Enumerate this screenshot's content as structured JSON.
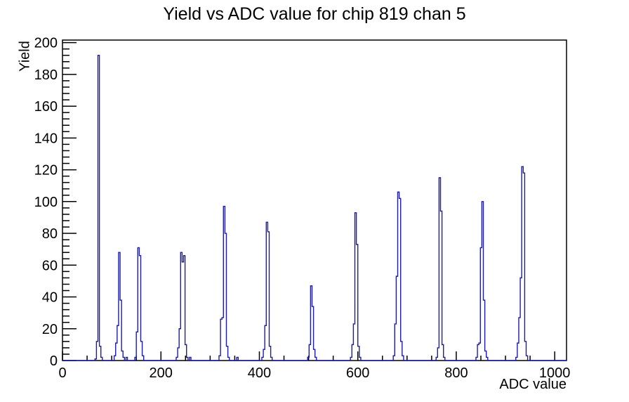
{
  "chart_data": {
    "type": "line",
    "style": "root-histogram-outline",
    "title": "Yield vs ADC value for chip 819 chan 5",
    "xlabel": "ADC value",
    "ylabel": "Yield",
    "xlim": [
      0,
      1024
    ],
    "ylim": [
      0,
      201.6
    ],
    "x_major_ticks": [
      0,
      200,
      400,
      600,
      800,
      1000
    ],
    "x_minor_step": 50,
    "y_major_ticks": [
      0,
      20,
      40,
      60,
      80,
      100,
      120,
      140,
      160,
      180,
      200
    ],
    "y_minor_step": 4,
    "grid": false,
    "legend": false,
    "line_color": "#1C1CA8",
    "frame_color": "#000000",
    "bin_width": 3,
    "peak_positions": [
      74,
      113,
      154,
      241,
      329,
      417,
      505,
      594,
      681,
      767,
      852,
      934
    ],
    "peak_heights": [
      192,
      68,
      71,
      68,
      97,
      87,
      47,
      93,
      106,
      115,
      100,
      122
    ],
    "bins": [
      [
        66,
        1
      ],
      [
        69,
        12
      ],
      [
        72,
        192
      ],
      [
        75,
        9
      ],
      [
        78,
        2
      ],
      [
        105,
        3
      ],
      [
        108,
        11
      ],
      [
        111,
        22
      ],
      [
        114,
        68
      ],
      [
        117,
        38
      ],
      [
        120,
        6
      ],
      [
        123,
        2
      ],
      [
        129,
        2
      ],
      [
        147,
        2
      ],
      [
        150,
        18
      ],
      [
        153,
        71
      ],
      [
        156,
        66
      ],
      [
        159,
        12
      ],
      [
        162,
        3
      ],
      [
        231,
        2
      ],
      [
        234,
        8
      ],
      [
        237,
        20
      ],
      [
        240,
        68
      ],
      [
        243,
        62
      ],
      [
        246,
        66
      ],
      [
        249,
        10
      ],
      [
        252,
        2
      ],
      [
        258,
        2
      ],
      [
        318,
        3
      ],
      [
        321,
        26
      ],
      [
        324,
        27
      ],
      [
        327,
        97
      ],
      [
        330,
        80
      ],
      [
        333,
        9
      ],
      [
        336,
        2
      ],
      [
        354,
        2
      ],
      [
        405,
        2
      ],
      [
        408,
        7
      ],
      [
        411,
        22
      ],
      [
        414,
        87
      ],
      [
        417,
        81
      ],
      [
        420,
        9
      ],
      [
        423,
        2
      ],
      [
        498,
        2
      ],
      [
        501,
        10
      ],
      [
        504,
        47
      ],
      [
        507,
        34
      ],
      [
        510,
        7
      ],
      [
        513,
        2
      ],
      [
        585,
        2
      ],
      [
        588,
        10
      ],
      [
        591,
        23
      ],
      [
        594,
        93
      ],
      [
        597,
        73
      ],
      [
        600,
        9
      ],
      [
        603,
        2
      ],
      [
        672,
        3
      ],
      [
        675,
        23
      ],
      [
        678,
        53
      ],
      [
        681,
        106
      ],
      [
        684,
        102
      ],
      [
        687,
        12
      ],
      [
        690,
        3
      ],
      [
        759,
        2
      ],
      [
        762,
        8
      ],
      [
        765,
        115
      ],
      [
        768,
        94
      ],
      [
        771,
        10
      ],
      [
        774,
        2
      ],
      [
        840,
        2
      ],
      [
        843,
        10
      ],
      [
        846,
        11
      ],
      [
        849,
        71
      ],
      [
        852,
        100
      ],
      [
        855,
        38
      ],
      [
        858,
        6
      ],
      [
        861,
        2
      ],
      [
        921,
        2
      ],
      [
        924,
        11
      ],
      [
        927,
        27
      ],
      [
        930,
        52
      ],
      [
        933,
        122
      ],
      [
        936,
        118
      ],
      [
        939,
        12
      ],
      [
        942,
        3
      ]
    ]
  }
}
